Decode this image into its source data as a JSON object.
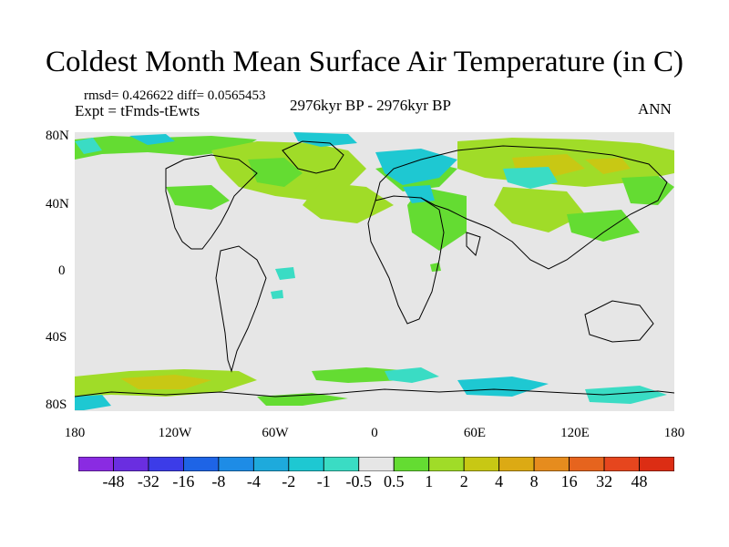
{
  "title": "Coldest Month Mean Surface Air Temperature (in C)",
  "stats": "rmsd= 0.426622  diff= 0.0565453",
  "experiment": "Expt = tFmds-tEwts",
  "period": "2976kyr BP - 2976kyr BP",
  "season": "ANN",
  "lat_labels": [
    "80N",
    "40N",
    "0",
    "40S",
    "80S"
  ],
  "lon_labels": [
    "180",
    "120W",
    "60W",
    "0",
    "60E",
    "120E",
    "180"
  ],
  "colorbar": {
    "labels": [
      "-48",
      "-32",
      "-16",
      "-8",
      "-4",
      "-2",
      "-1",
      "-0.5",
      "0.5",
      "1",
      "2",
      "4",
      "8",
      "16",
      "32",
      "48"
    ],
    "colors": [
      "#8a2be2",
      "#6a2ee0",
      "#3c3ce8",
      "#1e64e6",
      "#1e8ce6",
      "#1eaadc",
      "#1ec8d2",
      "#3adcc4",
      "#e6e6e6",
      "#64dc32",
      "#a0dc28",
      "#c8c814",
      "#dcaa14",
      "#e68c1e",
      "#e6641e",
      "#e6461e",
      "#dc2d14"
    ]
  },
  "colors": {
    "background": "#e6e6e6",
    "coast": "#000000"
  }
}
